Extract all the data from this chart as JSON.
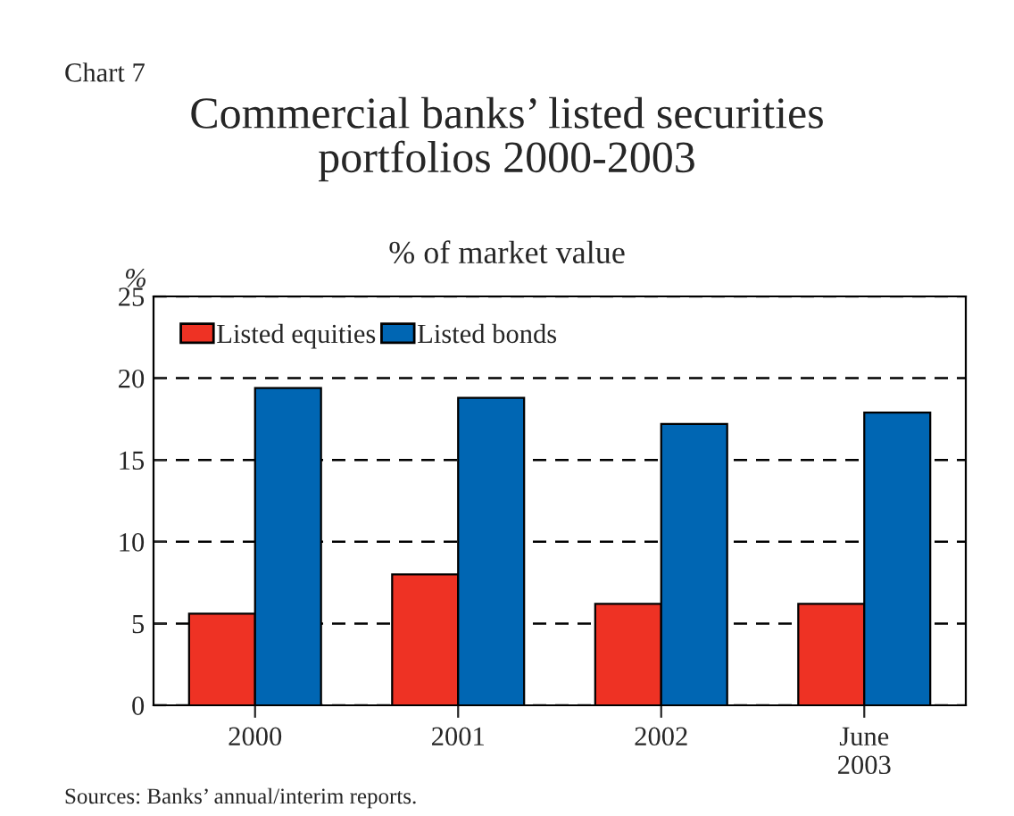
{
  "chart_data": {
    "type": "bar",
    "title": "Commercial banks’ listed securities\nportfolios 2000-2003",
    "subtitle": "% of market value",
    "ylabel": "%",
    "annotations": [
      "Chart 7",
      "Sources: Banks’ annual/interim reports."
    ],
    "categories": [
      "2000",
      "2001",
      "2002",
      "June\n2003"
    ],
    "series": [
      {
        "name": "Listed equities",
        "color": "#ee3224",
        "values": [
          5.6,
          8.0,
          6.2,
          6.2
        ]
      },
      {
        "name": "Listed bonds",
        "color": "#0066b3",
        "values": [
          19.4,
          18.8,
          17.2,
          17.9
        ]
      }
    ],
    "ylim": [
      0,
      25
    ],
    "yticks": [
      0,
      5,
      10,
      15,
      20,
      25
    ],
    "grid": "y",
    "line_style": "dashed",
    "legend": "top left"
  }
}
